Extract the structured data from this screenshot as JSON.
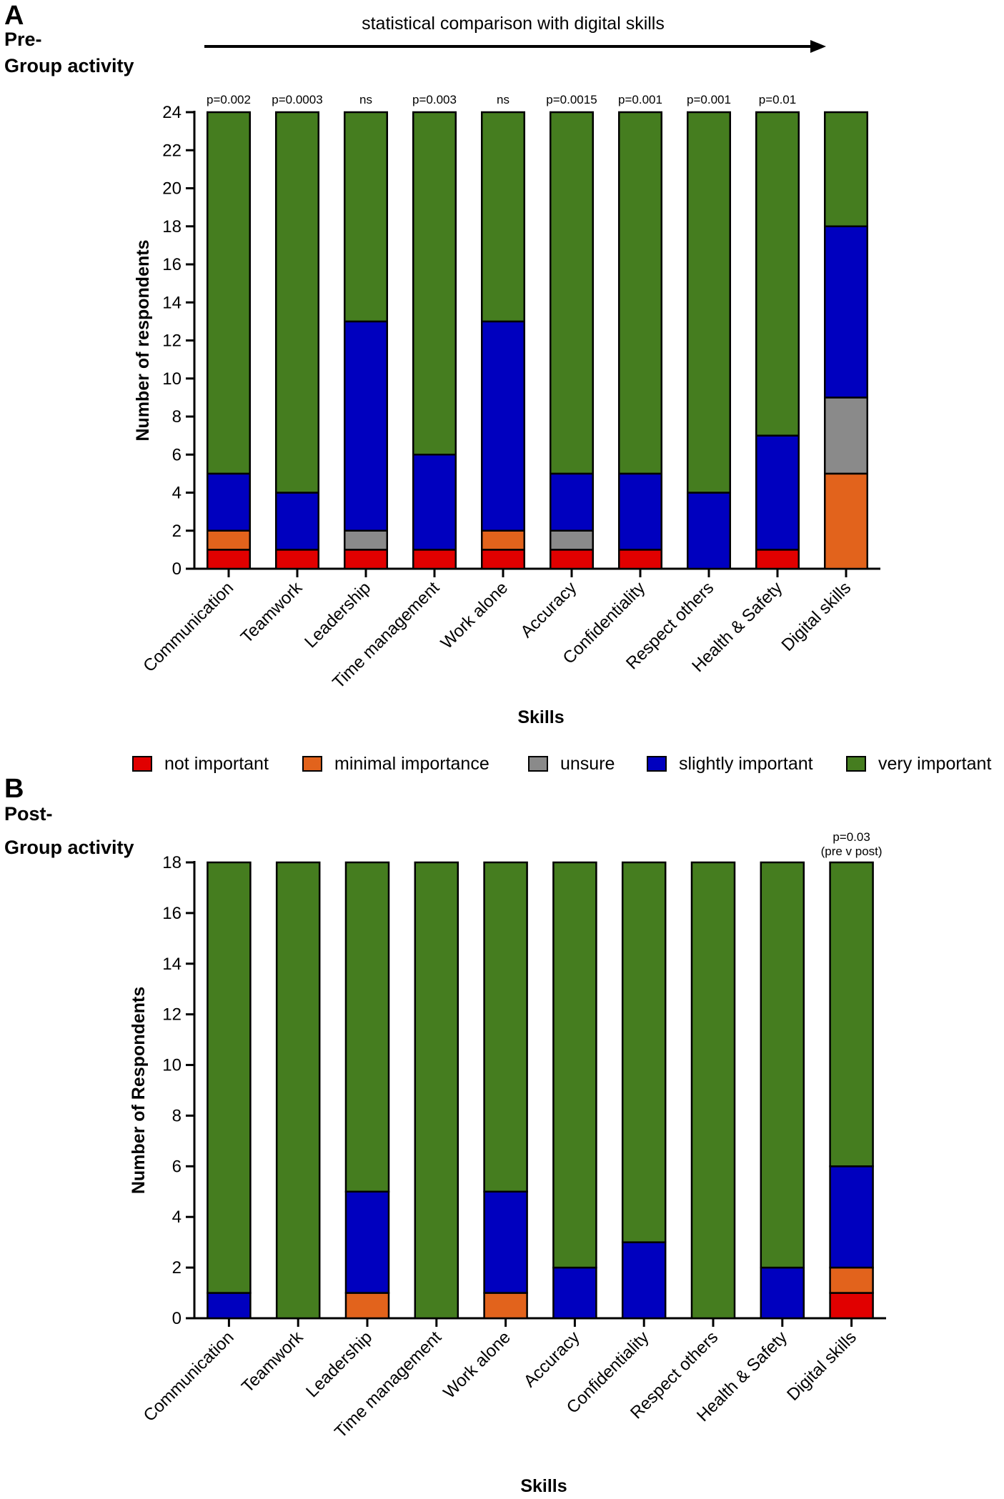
{
  "colors": {
    "not_important": "#e10000",
    "minimal_importance": "#e2631c",
    "unsure": "#8a8a8a",
    "slightly_important": "#0000bf",
    "very_important": "#457d1f"
  },
  "legend": [
    {
      "key": "not_important",
      "label": "not important"
    },
    {
      "key": "minimal_importance",
      "label": "minimal importance"
    },
    {
      "key": "unsure",
      "label": "unsure"
    },
    {
      "key": "slightly_important",
      "label": "slightly important"
    },
    {
      "key": "very_important",
      "label": "very important"
    }
  ],
  "top_note": "statistical comparison with digital skills",
  "chart_data": [
    {
      "type": "bar",
      "stacked": true,
      "panel": "A",
      "title_line1": "Pre-",
      "title_line2": "Group activity",
      "xlabel": "Skills",
      "ylabel": "Number of respondents",
      "ylim": [
        0,
        24
      ],
      "yticks": [
        0,
        2,
        4,
        6,
        8,
        10,
        12,
        14,
        16,
        18,
        20,
        22,
        24
      ],
      "categories": [
        "Communication",
        "Teamwork",
        "Leadership",
        "Time management",
        "Work alone",
        "Accuracy",
        "Confidentiality",
        "Respect others",
        "Health & Safety",
        "Digital skills"
      ],
      "annotations": [
        "p=0.002",
        "p=0.0003",
        "ns",
        "p=0.003",
        "ns",
        "p=0.0015",
        "p=0.001",
        "p=0.001",
        "p=0.01",
        ""
      ],
      "series": [
        {
          "name": "not important",
          "key": "not_important",
          "values": [
            1,
            1,
            1,
            1,
            1,
            1,
            1,
            0,
            1,
            0
          ]
        },
        {
          "name": "minimal importance",
          "key": "minimal_importance",
          "values": [
            1,
            0,
            0,
            0,
            1,
            0,
            0,
            0,
            0,
            5
          ]
        },
        {
          "name": "unsure",
          "key": "unsure",
          "values": [
            0,
            0,
            1,
            0,
            0,
            1,
            0,
            0,
            0,
            4
          ]
        },
        {
          "name": "slightly important",
          "key": "slightly_important",
          "values": [
            3,
            3,
            11,
            5,
            11,
            3,
            4,
            4,
            6,
            9
          ]
        },
        {
          "name": "very important",
          "key": "very_important",
          "values": [
            19,
            20,
            11,
            18,
            11,
            19,
            19,
            20,
            17,
            6
          ]
        }
      ]
    },
    {
      "type": "bar",
      "stacked": true,
      "panel": "B",
      "title_line1": "Post-",
      "title_line2": "Group activity",
      "xlabel": "Skills",
      "ylabel": "Number of Respondents",
      "ylim": [
        0,
        18
      ],
      "yticks": [
        0,
        2,
        4,
        6,
        8,
        10,
        12,
        14,
        16,
        18
      ],
      "categories": [
        "Communication",
        "Teamwork",
        "Leadership",
        "Time management",
        "Work alone",
        "Accuracy",
        "Confidentiality",
        "Respect others",
        "Health & Safety",
        "Digital skills"
      ],
      "annotation_line1": "p=0.03",
      "annotation_line2": "(pre v post)",
      "series": [
        {
          "name": "not important",
          "key": "not_important",
          "values": [
            0,
            0,
            0,
            0,
            0,
            0,
            0,
            0,
            0,
            1
          ]
        },
        {
          "name": "minimal importance",
          "key": "minimal_importance",
          "values": [
            0,
            0,
            1,
            0,
            1,
            0,
            0,
            0,
            0,
            1
          ]
        },
        {
          "name": "unsure",
          "key": "unsure",
          "values": [
            0,
            0,
            0,
            0,
            0,
            0,
            0,
            0,
            0,
            0
          ]
        },
        {
          "name": "slightly important",
          "key": "slightly_important",
          "values": [
            1,
            0,
            4,
            0,
            4,
            2,
            3,
            0,
            2,
            4
          ]
        },
        {
          "name": "very important",
          "key": "very_important",
          "values": [
            17,
            18,
            13,
            18,
            13,
            16,
            15,
            18,
            16,
            12
          ]
        }
      ]
    }
  ]
}
